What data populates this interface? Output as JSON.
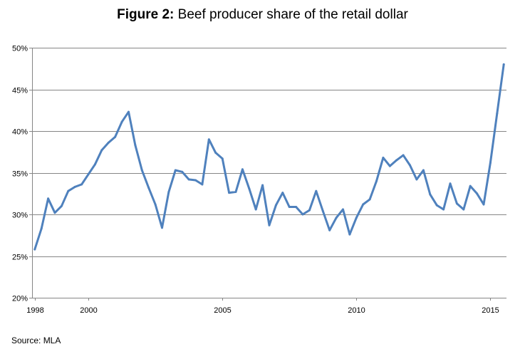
{
  "chart_data": {
    "type": "line",
    "title_bold": "Figure 2:",
    "title_rest": " Beef producer share of the retail dollar",
    "xlabel": "",
    "ylabel": "",
    "source": "Source: MLA",
    "line_color": "#4F81BD",
    "grid": true,
    "legend": "none",
    "ylim": [
      20,
      50
    ],
    "xlim": [
      1997.9,
      2015.6
    ],
    "y_ticks": [
      {
        "value": 20,
        "label": "20%"
      },
      {
        "value": 25,
        "label": "25%"
      },
      {
        "value": 30,
        "label": "30%"
      },
      {
        "value": 35,
        "label": "35%"
      },
      {
        "value": 40,
        "label": "40%"
      },
      {
        "value": 45,
        "label": "45%"
      },
      {
        "value": 50,
        "label": "50%"
      }
    ],
    "x_ticks": [
      {
        "value": 1998,
        "label": "1998"
      },
      {
        "value": 2000,
        "label": "2000"
      },
      {
        "value": 2005,
        "label": "2005"
      },
      {
        "value": 2010,
        "label": "2010"
      },
      {
        "value": 2015,
        "label": "2015"
      }
    ],
    "x": [
      1998.0,
      1998.25,
      1998.5,
      1998.75,
      1999.0,
      1999.25,
      1999.5,
      1999.75,
      2000.0,
      2000.25,
      2000.5,
      2000.75,
      2001.0,
      2001.25,
      2001.5,
      2001.75,
      2002.0,
      2002.25,
      2002.5,
      2002.75,
      2003.0,
      2003.25,
      2003.5,
      2003.75,
      2004.0,
      2004.25,
      2004.5,
      2004.75,
      2005.0,
      2005.25,
      2005.5,
      2005.75,
      2006.0,
      2006.25,
      2006.5,
      2006.75,
      2007.0,
      2007.25,
      2007.5,
      2007.75,
      2008.0,
      2008.25,
      2008.5,
      2008.75,
      2009.0,
      2009.25,
      2009.5,
      2009.75,
      2010.0,
      2010.25,
      2010.5,
      2010.75,
      2011.0,
      2011.25,
      2011.5,
      2011.75,
      2012.0,
      2012.25,
      2012.5,
      2012.75,
      2013.0,
      2013.25,
      2013.5,
      2013.75,
      2014.0,
      2014.25,
      2014.5,
      2014.75,
      2015.0,
      2015.25,
      2015.5
    ],
    "values": [
      25.8,
      28.3,
      31.9,
      30.2,
      31.0,
      32.8,
      33.3,
      33.6,
      34.8,
      36.0,
      37.7,
      38.6,
      39.3,
      41.1,
      42.3,
      38.3,
      35.3,
      33.2,
      31.2,
      28.4,
      32.7,
      35.3,
      35.1,
      34.2,
      34.1,
      33.6,
      39.0,
      37.4,
      36.7,
      32.6,
      32.7,
      35.4,
      33.1,
      30.6,
      33.5,
      28.7,
      31.1,
      32.6,
      30.9,
      30.9,
      30.0,
      30.5,
      32.8,
      30.4,
      28.1,
      29.6,
      30.6,
      27.6,
      29.6,
      31.2,
      31.8,
      34.0,
      36.8,
      35.8,
      36.5,
      37.1,
      35.9,
      34.2,
      35.3,
      32.4,
      31.1,
      30.6,
      33.7,
      31.3,
      30.6,
      33.4,
      32.5,
      31.2,
      36.2,
      42.1,
      48.0
    ]
  }
}
